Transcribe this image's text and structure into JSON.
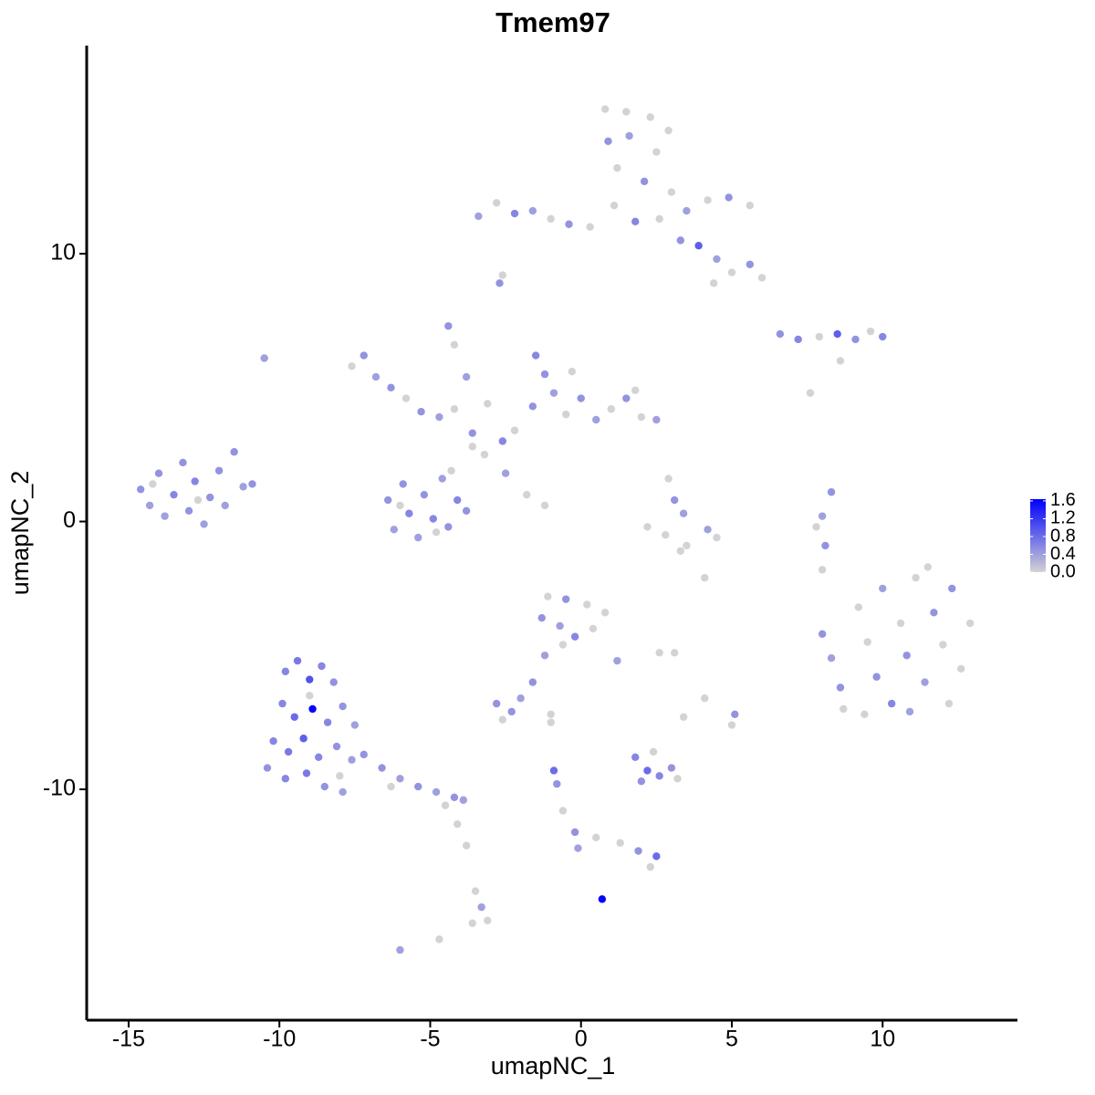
{
  "chart_data": {
    "type": "scatter",
    "title": "Tmem97",
    "x_label": "umapNC_1",
    "y_label": "umapNC_2",
    "xlim": [
      -16.39,
      14.47
    ],
    "ylim": [
      -18.62,
      17.77
    ],
    "xticks": [
      -15,
      -10,
      -5,
      0,
      5,
      10
    ],
    "yticks": [
      -10,
      0,
      10
    ],
    "low_color": "#d3d3d3",
    "high_color": "#0000ff",
    "colorbar_lim": [
      0,
      1.64
    ],
    "colorbar_ticks": [
      {
        "value": 0,
        "label": "0.0"
      },
      0.4,
      0.8,
      1.2,
      1.6
    ],
    "x": [
      -14.6,
      -14.3,
      -14.0,
      -13.8,
      -13.5,
      -13.2,
      -13.0,
      -12.8,
      -12.5,
      -12.3,
      -12.0,
      -11.8,
      -11.5,
      -11.2,
      -10.9,
      -14.2,
      -12.7,
      -10.5,
      -9.8,
      -9.4,
      -9.0,
      -8.6,
      -8.2,
      -9.9,
      -9.5,
      -8.9,
      -8.4,
      -7.9,
      -7.5,
      -10.2,
      -9.7,
      -9.2,
      -8.7,
      -8.1,
      -7.6,
      -10.4,
      -9.8,
      -9.1,
      -8.5,
      -7.9,
      -7.2,
      -6.6,
      -6.0,
      -5.4,
      -4.8,
      -4.2,
      -3.9,
      -9.0,
      -8.0,
      -6.3,
      -4.5,
      -4.1,
      -3.8,
      -3.5,
      -3.3,
      -3.6,
      -3.1,
      -4.7,
      -6.0,
      -6.4,
      -6.2,
      -5.9,
      -5.7,
      -5.4,
      -5.2,
      -4.9,
      -4.6,
      -4.4,
      -4.1,
      -3.8,
      -6.0,
      -4.8,
      -4.3,
      -7.6,
      -7.2,
      -6.8,
      -6.3,
      -5.8,
      -5.3,
      -4.7,
      -4.2,
      -3.6,
      -4.4,
      -4.2,
      -3.8,
      -3.1,
      -2.6,
      -3.2,
      -2.5,
      -1.8,
      -1.2,
      -3.6,
      -1.5,
      -1.2,
      -0.9,
      -1.6,
      -0.5,
      0.0,
      0.5,
      1.0,
      1.5,
      2.0,
      2.5,
      -0.3,
      1.8,
      -2.2,
      0.8,
      1.5,
      2.3,
      2.9,
      0.9,
      1.6,
      2.5,
      1.2,
      2.1,
      3.0,
      3.5,
      4.2,
      4.9,
      5.6,
      1.1,
      1.8,
      2.6,
      3.3,
      3.9,
      4.5,
      5.0,
      5.6,
      6.0,
      4.4,
      -3.4,
      -2.8,
      -2.2,
      -1.6,
      -1.0,
      -0.4,
      0.3,
      -2.7,
      -2.6,
      6.6,
      7.2,
      7.9,
      8.5,
      9.1,
      9.6,
      10.0,
      8.6,
      7.6,
      2.9,
      3.1,
      3.4,
      2.2,
      2.8,
      3.5,
      4.2,
      4.5,
      3.3,
      4.1,
      8.3,
      8.0,
      7.8,
      8.1,
      8.0,
      8.0,
      8.3,
      8.6,
      8.7,
      9.2,
      9.5,
      9.8,
      10.0,
      10.3,
      10.6,
      10.8,
      11.1,
      11.4,
      11.7,
      12.0,
      12.3,
      12.6,
      12.9,
      9.4,
      10.9,
      12.2,
      11.5,
      -1.1,
      -0.5,
      0.2,
      0.8,
      -1.3,
      -0.7,
      -0.2,
      0.4,
      1.2,
      -0.6,
      -1.2,
      -1.6,
      -2.0,
      -2.8,
      -2.3,
      -2.6,
      -1.0,
      2.6,
      3.1,
      1.8,
      2.2,
      2.6,
      3.0,
      3.2,
      2.0,
      2.4,
      3.4,
      5.1,
      5.0,
      -0.9,
      -0.8,
      -0.6,
      -0.2,
      -0.1,
      0.5,
      1.3,
      1.9,
      2.5,
      2.3,
      0.7,
      4.1,
      -1.0
    ],
    "y": [
      1.2,
      0.6,
      1.8,
      0.2,
      1.0,
      2.2,
      0.4,
      1.5,
      -0.1,
      0.9,
      1.9,
      0.6,
      2.6,
      1.3,
      1.4,
      1.4,
      0.8,
      6.1,
      -5.6,
      -5.2,
      -5.9,
      -5.4,
      -6.0,
      -6.8,
      -7.3,
      -7.0,
      -7.5,
      -6.9,
      -7.6,
      -8.2,
      -8.6,
      -8.1,
      -8.8,
      -8.4,
      -8.9,
      -9.2,
      -9.6,
      -9.4,
      -9.9,
      -10.1,
      -8.7,
      -9.2,
      -9.6,
      -9.9,
      -10.1,
      -10.3,
      -10.4,
      -6.5,
      -9.5,
      -9.9,
      -10.6,
      -11.3,
      -12.1,
      -13.8,
      -14.4,
      -15.0,
      -14.9,
      -15.6,
      -16.0,
      0.8,
      -0.3,
      1.4,
      0.3,
      -0.6,
      1.0,
      0.1,
      1.6,
      -0.2,
      0.8,
      0.4,
      0.6,
      -0.4,
      1.9,
      5.8,
      6.2,
      5.4,
      5.0,
      4.6,
      4.1,
      3.9,
      4.2,
      3.3,
      7.3,
      6.6,
      5.4,
      4.4,
      3.0,
      2.5,
      1.8,
      1.0,
      0.6,
      2.8,
      6.2,
      5.5,
      4.8,
      4.3,
      4.0,
      4.6,
      3.8,
      4.2,
      4.6,
      3.9,
      3.8,
      5.6,
      4.9,
      3.4,
      15.4,
      15.3,
      15.1,
      14.6,
      14.2,
      14.4,
      13.8,
      13.2,
      12.7,
      12.3,
      11.6,
      12.0,
      12.1,
      11.8,
      11.8,
      11.2,
      11.3,
      10.5,
      10.3,
      9.8,
      9.3,
      9.6,
      9.1,
      8.9,
      11.4,
      11.9,
      11.5,
      11.6,
      11.3,
      11.1,
      11.0,
      8.9,
      9.2,
      7.0,
      6.8,
      6.9,
      7.0,
      6.8,
      7.1,
      6.9,
      6.0,
      4.8,
      1.6,
      0.8,
      0.3,
      -0.2,
      -0.5,
      -0.9,
      -0.3,
      -0.6,
      -1.1,
      -2.1,
      1.1,
      0.2,
      -0.2,
      -0.9,
      -1.8,
      -4.2,
      -5.1,
      -6.2,
      -7.0,
      -3.2,
      -4.5,
      -5.8,
      -2.5,
      -6.8,
      -3.8,
      -5.0,
      -2.1,
      -6.0,
      -3.4,
      -4.6,
      -2.5,
      -5.5,
      -3.8,
      -7.2,
      -7.1,
      -6.8,
      -1.7,
      -2.8,
      -2.9,
      -3.1,
      -3.4,
      -3.6,
      -3.9,
      -4.3,
      -4.0,
      -5.2,
      -4.6,
      -5.0,
      -6.0,
      -6.6,
      -6.8,
      -7.1,
      -7.4,
      -7.2,
      -4.9,
      -4.9,
      -8.8,
      -9.3,
      -9.5,
      -9.2,
      -9.6,
      -9.7,
      -8.6,
      -7.3,
      -7.2,
      -7.6,
      -9.3,
      -9.8,
      -10.8,
      -11.6,
      -12.2,
      -11.8,
      -12.0,
      -12.3,
      -12.5,
      -12.9,
      -14.1,
      -6.6,
      -7.5
    ],
    "values": [
      0.5,
      0.4,
      0.5,
      0.4,
      0.6,
      0.5,
      0.5,
      0.6,
      0.4,
      0.5,
      0.5,
      0.4,
      0.5,
      0.4,
      0.5,
      0,
      0,
      0.4,
      0.6,
      0.7,
      1.0,
      0.6,
      0.5,
      0.6,
      0.8,
      1.6,
      0.6,
      0.5,
      0.4,
      0.6,
      0.7,
      0.9,
      0.6,
      0.5,
      0.4,
      0.5,
      0.6,
      0.7,
      0.5,
      0.4,
      0.5,
      0.5,
      0.4,
      0.5,
      0.4,
      0.5,
      0.4,
      0,
      0,
      0,
      0,
      0,
      0,
      0,
      0.4,
      0,
      0,
      0,
      0.4,
      0.5,
      0.4,
      0.5,
      0.6,
      0.4,
      0.5,
      0.6,
      0.4,
      0.5,
      0.6,
      0.5,
      0,
      0,
      0,
      0,
      0.5,
      0.4,
      0.5,
      0,
      0.5,
      0.4,
      0,
      0.5,
      0.5,
      0,
      0.4,
      0,
      0.6,
      0,
      0.4,
      0,
      0,
      0,
      0.6,
      0.5,
      0.4,
      0.5,
      0,
      0.5,
      0.4,
      0,
      0.5,
      0,
      0.4,
      0,
      0,
      0,
      0,
      0,
      0,
      0,
      0.5,
      0.4,
      0,
      0,
      0.5,
      0,
      0.4,
      0,
      0.5,
      0,
      0,
      0.6,
      0,
      0.5,
      0.9,
      0.4,
      0,
      0.5,
      0,
      0,
      0.4,
      0,
      0.6,
      0.4,
      0,
      0.5,
      0,
      0.5,
      0,
      0.5,
      0.6,
      0,
      0.9,
      0.5,
      0,
      0.6,
      0,
      0,
      0,
      0.5,
      0.4,
      0,
      0,
      0,
      0.4,
      0,
      0,
      0,
      0.5,
      0.4,
      0,
      0.5,
      0,
      0.5,
      0.4,
      0.5,
      0,
      0,
      0,
      0.5,
      0.4,
      0.6,
      0,
      0.5,
      0,
      0.4,
      0.5,
      0,
      0.5,
      0,
      0,
      0,
      0.4,
      0,
      0,
      0,
      0.5,
      0,
      0,
      0.5,
      0.4,
      0.6,
      0,
      0.4,
      0,
      0.4,
      0.5,
      0.4,
      0.5,
      0.5,
      0,
      0,
      0,
      0,
      0.6,
      0.8,
      0.6,
      0.5,
      0,
      0.5,
      0,
      0,
      0.5,
      0,
      0.8,
      0.5,
      0,
      0.5,
      0.4,
      0,
      0,
      0.5,
      0.8,
      0,
      1.6,
      0,
      0
    ]
  }
}
